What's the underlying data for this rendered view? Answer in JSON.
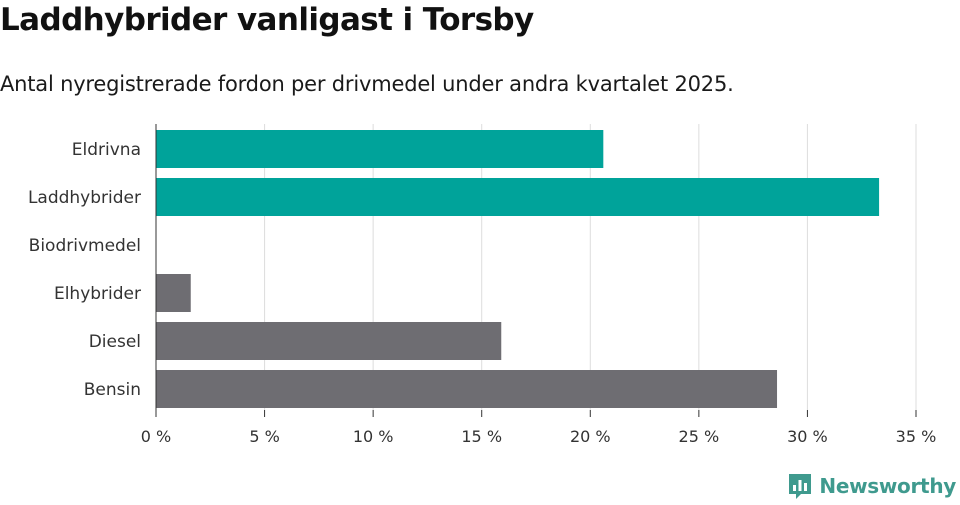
{
  "header": {
    "title": "Laddhybrider vanligast i Torsby",
    "subtitle": "Antal nyregistrerade fordon per drivmedel under andra kvartalet 2025."
  },
  "brand": {
    "name": "Newsworthy",
    "logo_icon": "newsworthy-chart-icon",
    "color": "#3f9a8e"
  },
  "colors": {
    "highlight": "#00a39a",
    "default": "#6e6d72",
    "grid": "#dddddd",
    "axis": "#333333"
  },
  "chart_data": {
    "type": "bar",
    "orientation": "horizontal",
    "categories": [
      "Eldrivna",
      "Laddhybrider",
      "Biodrivmedel",
      "Elhybrider",
      "Diesel",
      "Bensin"
    ],
    "values": [
      20.6,
      33.3,
      0,
      1.6,
      15.9,
      28.6
    ],
    "unit": "%",
    "highlighted": [
      true,
      true,
      false,
      false,
      false,
      false
    ],
    "xlim": [
      0,
      35
    ],
    "xticks": [
      0,
      5,
      10,
      15,
      20,
      25,
      30,
      35
    ],
    "xtick_labels": [
      "0 %",
      "5 %",
      "10 %",
      "15 %",
      "20 %",
      "25 %",
      "30 %",
      "35 %"
    ],
    "grid": true,
    "title": "Laddhybrider vanligast i Torsby",
    "subtitle": "Antal nyregistrerade fordon per drivmedel under andra kvartalet 2025.",
    "xlabel": "",
    "ylabel": ""
  }
}
